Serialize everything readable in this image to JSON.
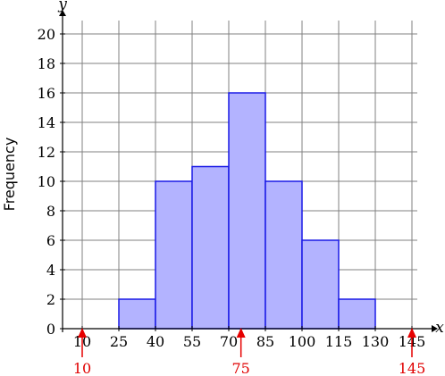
{
  "chart_data": {
    "type": "bar",
    "title": "",
    "ylabel": "Frequency",
    "xvar": "x",
    "yvar": "y",
    "x_ticks": [
      10,
      25,
      40,
      55,
      70,
      85,
      100,
      115,
      130,
      145
    ],
    "y_ticks": [
      0,
      2,
      4,
      6,
      8,
      10,
      12,
      14,
      16,
      18,
      20
    ],
    "xlim": [
      10,
      145
    ],
    "ylim": [
      0,
      20
    ],
    "grid": true,
    "bins": [
      {
        "from": 10,
        "to": 25,
        "value": 0
      },
      {
        "from": 25,
        "to": 40,
        "value": 2
      },
      {
        "from": 40,
        "to": 55,
        "value": 10
      },
      {
        "from": 55,
        "to": 70,
        "value": 11
      },
      {
        "from": 70,
        "to": 85,
        "value": 16
      },
      {
        "from": 85,
        "to": 100,
        "value": 10
      },
      {
        "from": 100,
        "to": 115,
        "value": 6
      },
      {
        "from": 115,
        "to": 130,
        "value": 2
      },
      {
        "from": 130,
        "to": 145,
        "value": 0
      }
    ],
    "markers": [
      {
        "x": 10,
        "label": "10"
      },
      {
        "x": 75,
        "label": "75"
      },
      {
        "x": 145,
        "label": "145"
      }
    ],
    "colors": {
      "bar_fill": "#b3b3ff",
      "bar_stroke": "#1a1ae6",
      "grid": "#808080",
      "marker": "#e60000"
    }
  }
}
